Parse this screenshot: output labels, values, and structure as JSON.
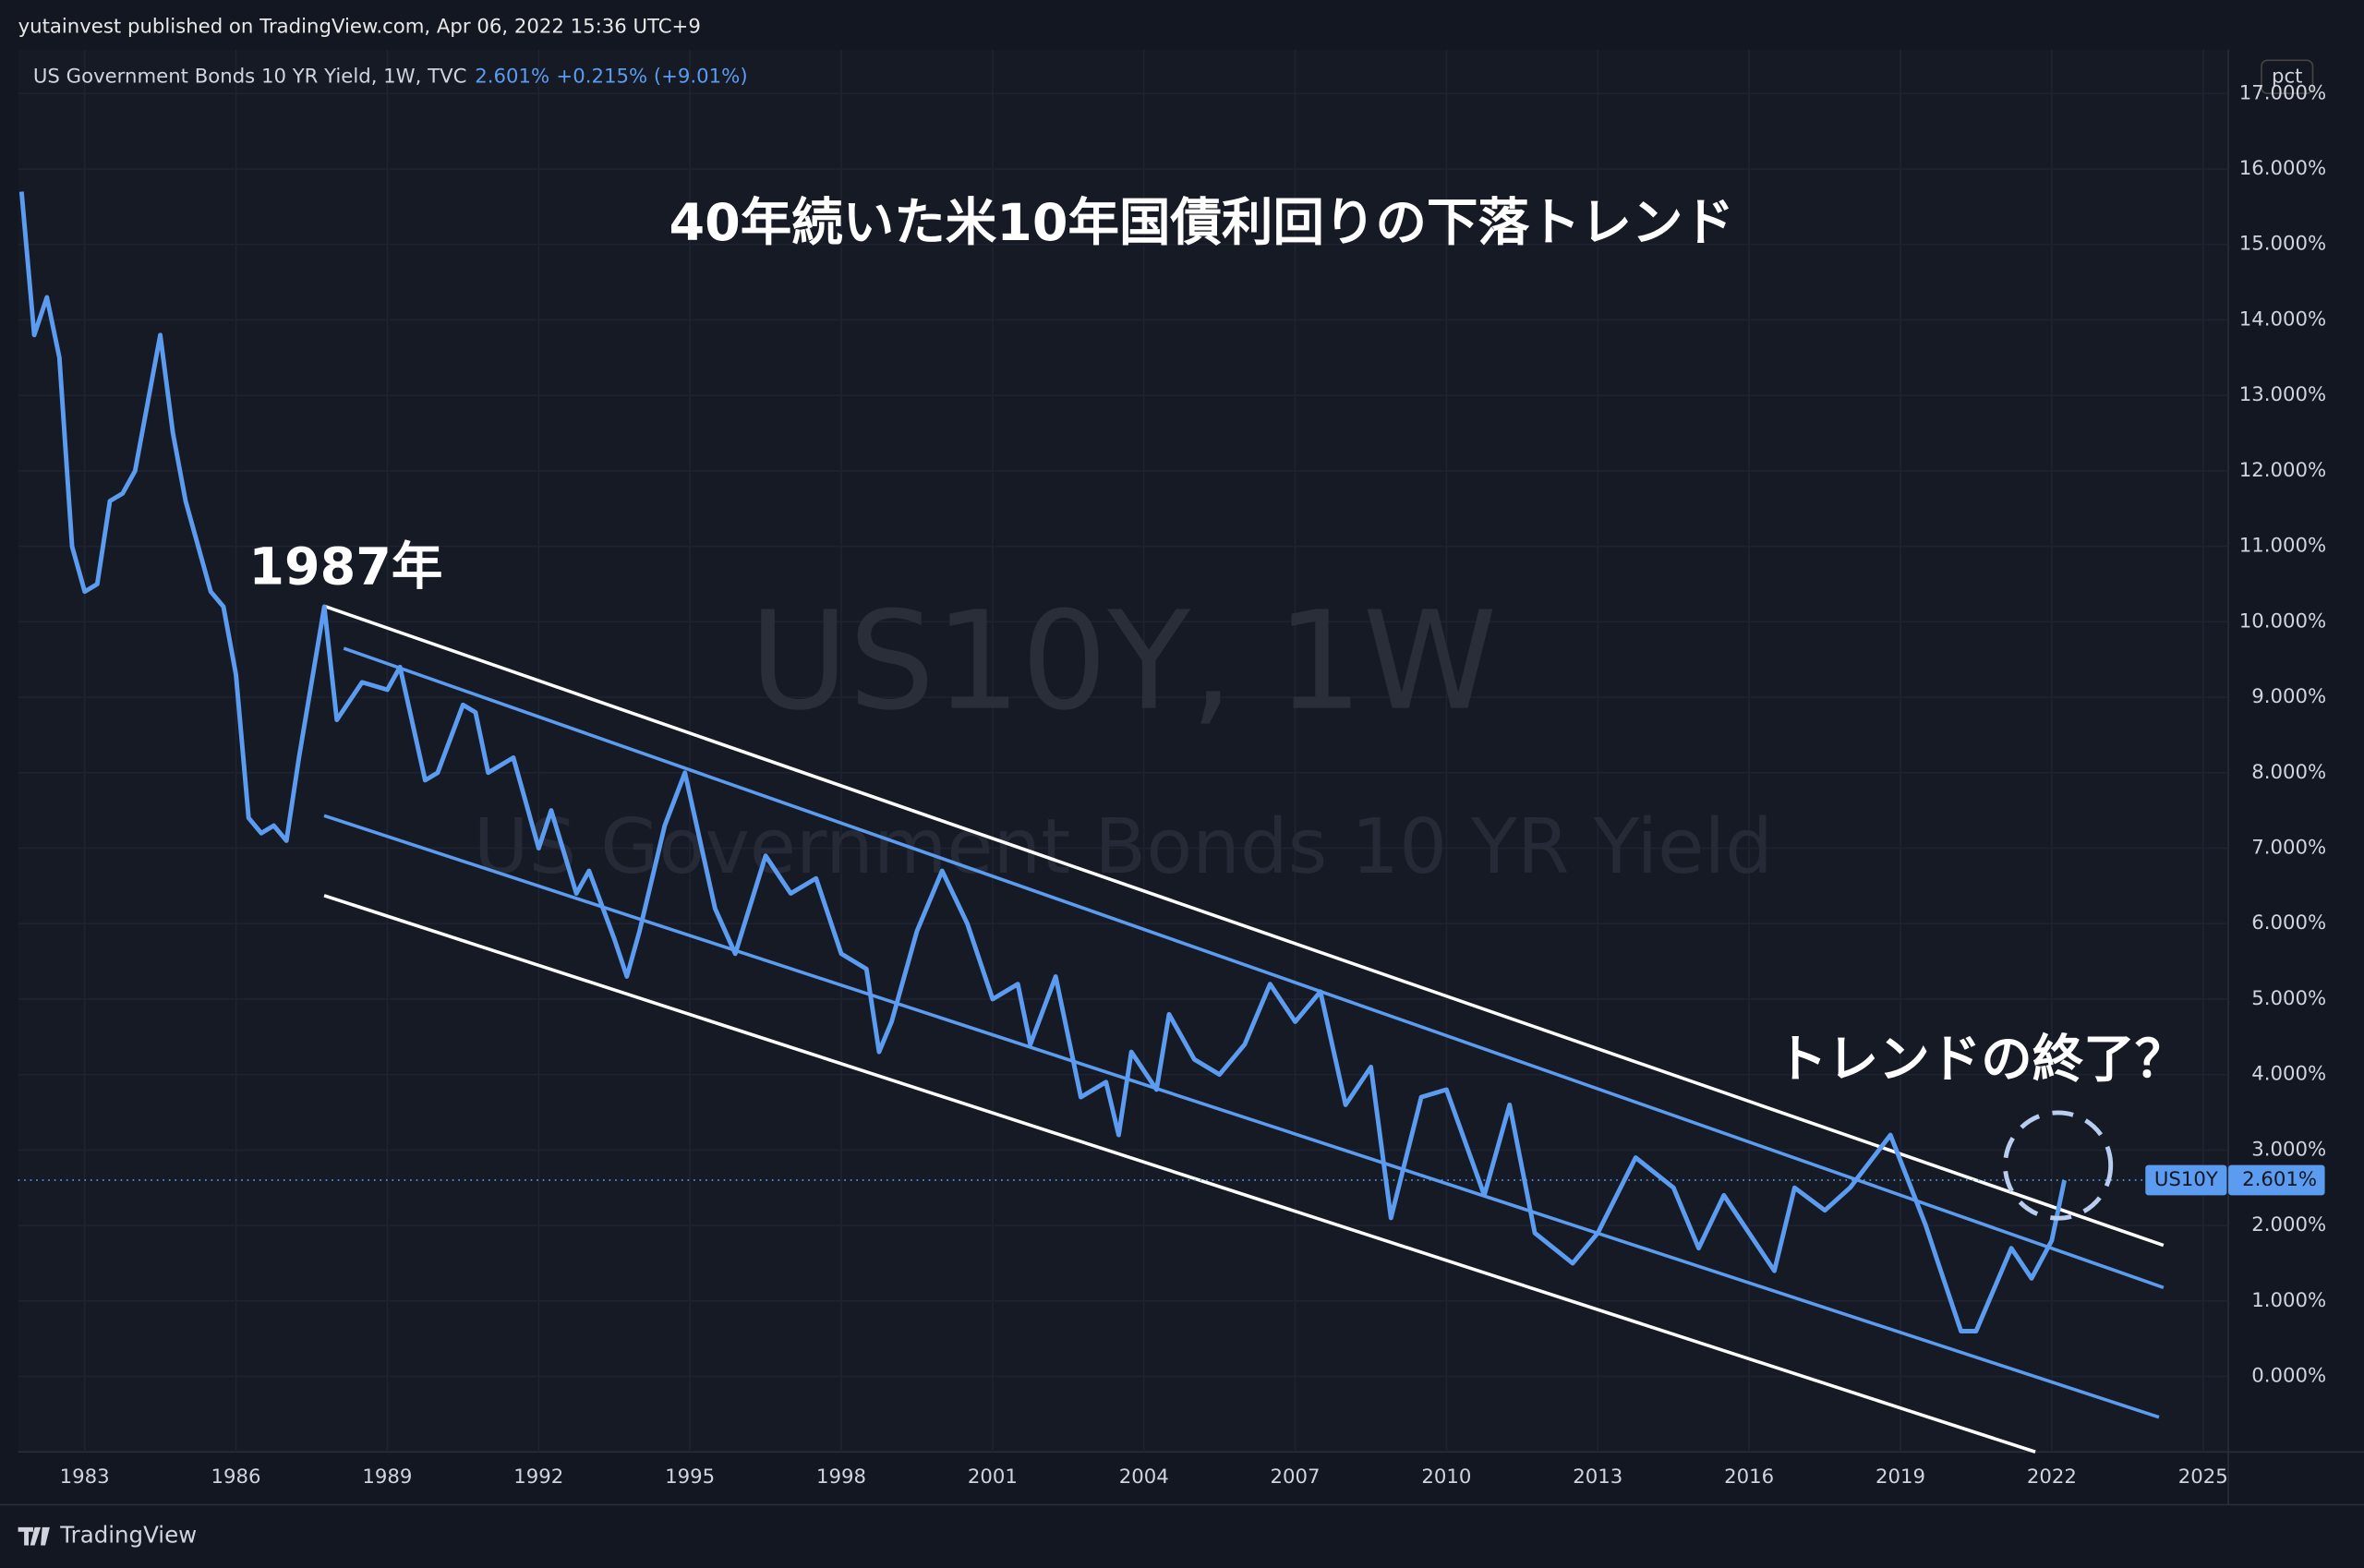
{
  "header": {
    "publisher": "yutainvest published on TradingView.com, Apr 06, 2022 15:36 UTC+9",
    "legend": "US Government Bonds 10 YR Yield, 1W, TVC",
    "legend_value": "2.601%",
    "legend_change": "+0.215% (+9.01%)",
    "scale_mode": "pct",
    "watermark_symbol": "US10Y, 1W",
    "watermark_name": "US Government Bonds 10 YR Yield"
  },
  "footer": {
    "brand": "TradingView"
  },
  "chart_data": {
    "type": "line",
    "title": "40年続いた米10年国債利回りの下落トレンド",
    "annotations": [
      "1987年",
      "トレンドの終了？"
    ],
    "x": [
      1981.75,
      1982.0,
      1982.25,
      1982.5,
      1982.75,
      1983.0,
      1983.25,
      1983.5,
      1983.75,
      1984.0,
      1984.5,
      1984.75,
      1985.0,
      1985.5,
      1985.75,
      1986.0,
      1986.25,
      1986.5,
      1986.75,
      1987.0,
      1987.25,
      1987.75,
      1988.0,
      1988.5,
      1989.0,
      1989.25,
      1989.75,
      1990.0,
      1990.5,
      1990.75,
      1991.0,
      1991.5,
      1992.0,
      1992.25,
      1992.75,
      1993.0,
      1993.5,
      1993.75,
      1994.0,
      1994.5,
      1994.9,
      1995.5,
      1995.9,
      1996.5,
      1997.0,
      1997.5,
      1998.0,
      1998.5,
      1998.75,
      1999.0,
      1999.5,
      2000.0,
      2000.5,
      2001.0,
      2001.5,
      2001.75,
      2002.25,
      2002.75,
      2003.25,
      2003.5,
      2003.75,
      2004.25,
      2004.5,
      2005.0,
      2005.5,
      2006.0,
      2006.5,
      2007.0,
      2007.5,
      2008.0,
      2008.5,
      2008.9,
      2009.5,
      2010.0,
      2010.75,
      2011.25,
      2011.75,
      2012.5,
      2013.0,
      2013.75,
      2014.5,
      2015.0,
      2015.5,
      2016.5,
      2016.9,
      2017.5,
      2018.0,
      2018.8,
      2019.5,
      2019.75,
      2020.2,
      2020.5,
      2021.2,
      2021.6,
      2022.0,
      2022.25
    ],
    "series": [
      {
        "name": "US10Y",
        "color": "#5b9cf0",
        "values": [
          15.7,
          13.8,
          14.3,
          13.5,
          11.0,
          10.4,
          10.5,
          11.6,
          11.7,
          12.0,
          13.8,
          12.5,
          11.6,
          10.4,
          10.2,
          9.3,
          7.4,
          7.2,
          7.3,
          7.1,
          8.2,
          10.2,
          8.7,
          9.2,
          9.1,
          9.4,
          7.9,
          8.0,
          8.9,
          8.8,
          8.0,
          8.2,
          7.0,
          7.5,
          6.4,
          6.7,
          5.8,
          5.3,
          5.9,
          7.3,
          8.0,
          6.2,
          5.6,
          6.9,
          6.4,
          6.6,
          5.6,
          5.4,
          4.3,
          4.7,
          5.9,
          6.7,
          6.0,
          5.0,
          5.2,
          4.4,
          5.3,
          3.7,
          3.9,
          3.2,
          4.3,
          3.8,
          4.8,
          4.2,
          4.0,
          4.4,
          5.2,
          4.7,
          5.1,
          3.6,
          4.1,
          2.1,
          3.7,
          3.8,
          2.4,
          3.6,
          1.9,
          1.5,
          1.9,
          2.9,
          2.5,
          1.7,
          2.4,
          1.4,
          2.5,
          2.2,
          2.5,
          3.2,
          2.0,
          1.5,
          0.6,
          0.6,
          1.7,
          1.3,
          1.8,
          2.601
        ]
      }
    ],
    "last_price_label": "2.601%",
    "xlim": [
      1981.68,
      2025.5
    ],
    "ylim": [
      -1.0,
      17.58
    ],
    "xticks": [
      1983,
      1986,
      1989,
      1992,
      1995,
      1998,
      2001,
      2004,
      2007,
      2010,
      2013,
      2016,
      2019,
      2022,
      2025
    ],
    "yticks": [
      {
        "value": 0,
        "label": "0.000%"
      },
      {
        "value": 1,
        "label": "1.000%"
      },
      {
        "value": 2,
        "label": "2.000%"
      },
      {
        "value": 3,
        "label": "3.000%"
      },
      {
        "value": 4,
        "label": "4.000%"
      },
      {
        "value": 5,
        "label": "5.000%"
      },
      {
        "value": 6,
        "label": "6.000%"
      },
      {
        "value": 7,
        "label": "7.000%"
      },
      {
        "value": 8,
        "label": "8.000%"
      },
      {
        "value": 9,
        "label": "9.000%"
      },
      {
        "value": 10,
        "label": "10.000%"
      },
      {
        "value": 11,
        "label": "11.000%"
      },
      {
        "value": 12,
        "label": "12.000%"
      },
      {
        "value": 13,
        "label": "13.000%"
      },
      {
        "value": 14,
        "label": "14.000%"
      },
      {
        "value": 15,
        "label": "15.000%"
      },
      {
        "value": 16,
        "label": "16.000%"
      },
      {
        "value": 17,
        "label": "17.000%"
      }
    ],
    "grid": true
  }
}
